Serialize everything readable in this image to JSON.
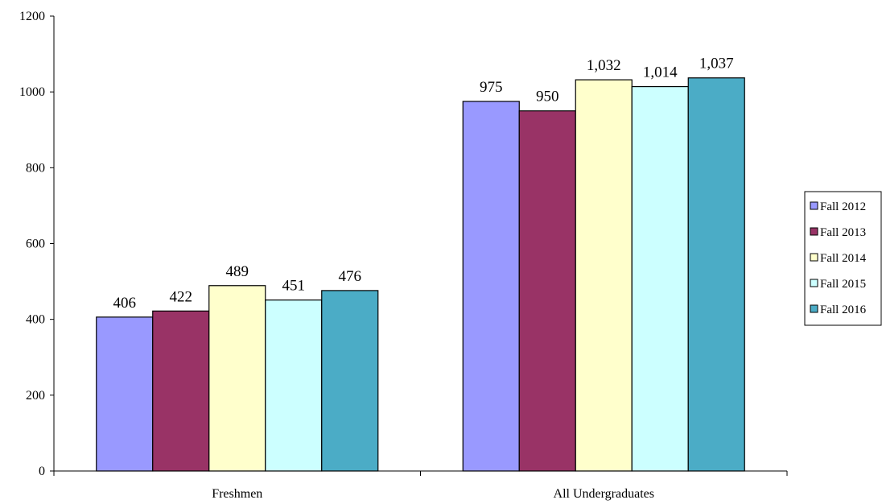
{
  "chart_data": {
    "type": "bar",
    "title": "",
    "xlabel": "",
    "ylabel": "",
    "categories": [
      "Freshmen",
      "All Undergraduates"
    ],
    "ylim": [
      0,
      1200
    ],
    "yticks": [
      0,
      200,
      400,
      600,
      800,
      1000,
      1200
    ],
    "ytick_labels": [
      "0",
      "200",
      "400",
      "600",
      "800",
      "1000",
      "1200"
    ],
    "grid": false,
    "legend_position": "right",
    "series": [
      {
        "name": "Fall 2012",
        "color": "#9999FF",
        "values": [
          406,
          975
        ],
        "labels": [
          "406",
          "975"
        ]
      },
      {
        "name": "Fall 2013",
        "color": "#993366",
        "values": [
          422,
          950
        ],
        "labels": [
          "422",
          "950"
        ]
      },
      {
        "name": "Fall 2014",
        "color": "#FFFFCC",
        "values": [
          489,
          1032
        ],
        "labels": [
          "489",
          "1,032"
        ]
      },
      {
        "name": "Fall 2015",
        "color": "#CCFFFF",
        "values": [
          451,
          1014
        ],
        "labels": [
          "451",
          "1,014"
        ]
      },
      {
        "name": "Fall 2016",
        "color": "#4BACC6",
        "values": [
          476,
          1037
        ],
        "labels": [
          "476",
          "1,037"
        ]
      }
    ]
  }
}
